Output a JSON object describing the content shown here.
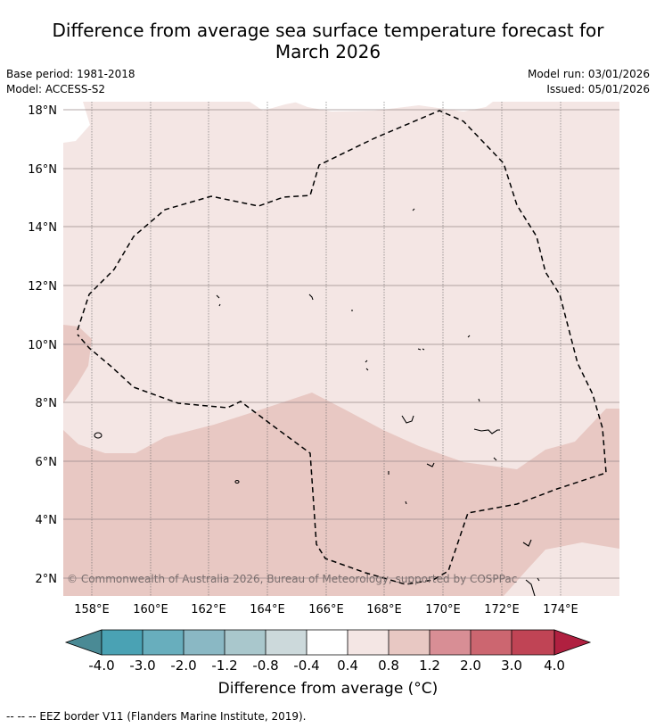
{
  "title": {
    "line1": "Difference from average sea surface temperature forecast for",
    "line2": "March 2026"
  },
  "meta": {
    "base_period": "Base period: 1981-2018",
    "model": "Model: ACCESS-S2",
    "model_run": "Model run: 03/01/2026",
    "issued": "Issued: 05/01/2026"
  },
  "map": {
    "lat_labels": [
      "18°N",
      "16°N",
      "14°N",
      "12°N",
      "10°N",
      "8°N",
      "6°N",
      "4°N",
      "2°N"
    ],
    "lon_labels": [
      "158°E",
      "160°E",
      "162°E",
      "164°E",
      "166°E",
      "168°E",
      "170°E",
      "172°E",
      "174°E"
    ],
    "copyright": "© Commonwealth of Australia 2026, Bureau of Meteorology, supported by COSPPac",
    "colors": {
      "light_anomaly": "#f4e6e4",
      "medium_anomaly": "#e8c8c3"
    }
  },
  "colorbar": {
    "title": "Difference from average (°C)",
    "ticks": [
      "-4.0",
      "-3.0",
      "-2.0",
      "-1.2",
      "-0.8",
      "-0.4",
      "0.4",
      "0.8",
      "1.2",
      "2.0",
      "3.0",
      "4.0"
    ],
    "colors": [
      "#4a8a95",
      "#4aa2b4",
      "#68aebd",
      "#8ab8c4",
      "#a9c7cc",
      "#ccd9db",
      "#ffffff",
      "#f4e6e4",
      "#e8c8c3",
      "#d88e95",
      "#cc6670",
      "#c04455",
      "#b02040"
    ]
  },
  "footnote": "-- -- -- EEZ border V11 (Flanders Marine Institute, 2019)."
}
